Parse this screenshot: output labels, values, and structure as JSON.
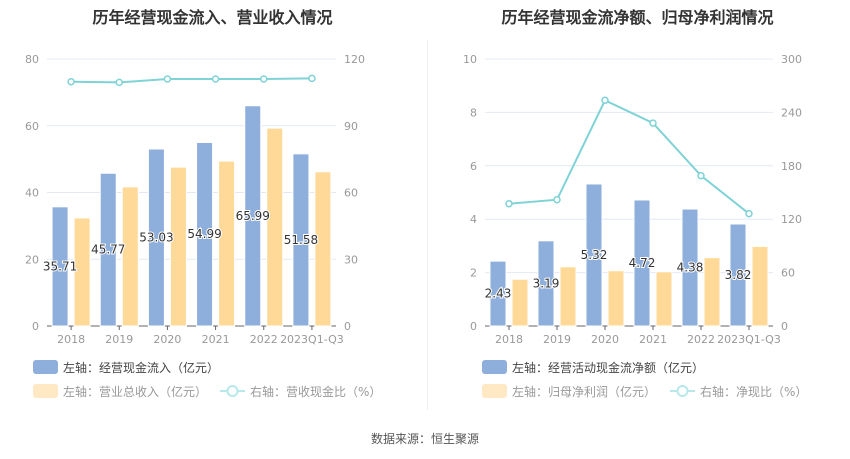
{
  "source": "数据来源：恒生聚源",
  "colors": {
    "bar1": "#8eaedb",
    "bar2": "#ffd998",
    "line": "#7fd3d6",
    "grid": "#e3e8f3",
    "axis": "#999"
  },
  "chart_data": [
    {
      "type": "bar",
      "title": "历年经营现金流入、营业收入情况",
      "categories": [
        "2018",
        "2019",
        "2020",
        "2021",
        "2022",
        "2023Q1-Q3"
      ],
      "ylim": [
        0,
        80
      ],
      "yticks": [
        "0",
        "20",
        "40",
        "60",
        "80"
      ],
      "y2lim": [
        0,
        120
      ],
      "y2ticks": [
        "0",
        "30",
        "60",
        "90",
        "120"
      ],
      "series": [
        {
          "name": "左轴：经营现金流入（亿元）",
          "kind": "bar",
          "values": [
            35.71,
            45.77,
            53.03,
            54.99,
            65.99,
            51.58
          ],
          "labels": [
            "35.71",
            "45.77",
            "53.03",
            "54.99",
            "65.99",
            "51.58"
          ]
        },
        {
          "name": "左轴：营业总收入（亿元）",
          "kind": "bar",
          "values": [
            32.4,
            41.7,
            47.6,
            49.4,
            59.3,
            46.2
          ]
        },
        {
          "name": "右轴：营收现金比（%）",
          "kind": "line",
          "axis": "right",
          "values": [
            109.8,
            109.5,
            111.0,
            111.0,
            111.0,
            111.3
          ]
        }
      ]
    },
    {
      "type": "bar",
      "title": "历年经营现金流净额、归母净利润情况",
      "categories": [
        "2018",
        "2019",
        "2020",
        "2021",
        "2022",
        "2023Q1-Q3"
      ],
      "ylim": [
        0,
        10
      ],
      "yticks": [
        "0",
        "2",
        "4",
        "6",
        "8",
        "10"
      ],
      "y2lim": [
        0,
        300
      ],
      "y2ticks": [
        "0",
        "60",
        "120",
        "180",
        "240",
        "300"
      ],
      "series": [
        {
          "name": "左轴：经营活动现金流净额（亿元）",
          "kind": "bar",
          "values": [
            2.43,
            3.19,
            5.32,
            4.72,
            4.38,
            3.82
          ],
          "labels": [
            "2.43",
            "3.19",
            "5.32",
            "4.72",
            "4.38",
            "3.82"
          ]
        },
        {
          "name": "左轴：归母净利润（亿元）",
          "kind": "bar",
          "values": [
            1.75,
            2.22,
            2.07,
            2.03,
            2.56,
            2.98
          ]
        },
        {
          "name": "右轴：净现比（%）",
          "kind": "line",
          "axis": "right",
          "values": [
            137.4,
            141.9,
            253.6,
            228.0,
            168.9,
            126.2
          ]
        }
      ]
    }
  ]
}
